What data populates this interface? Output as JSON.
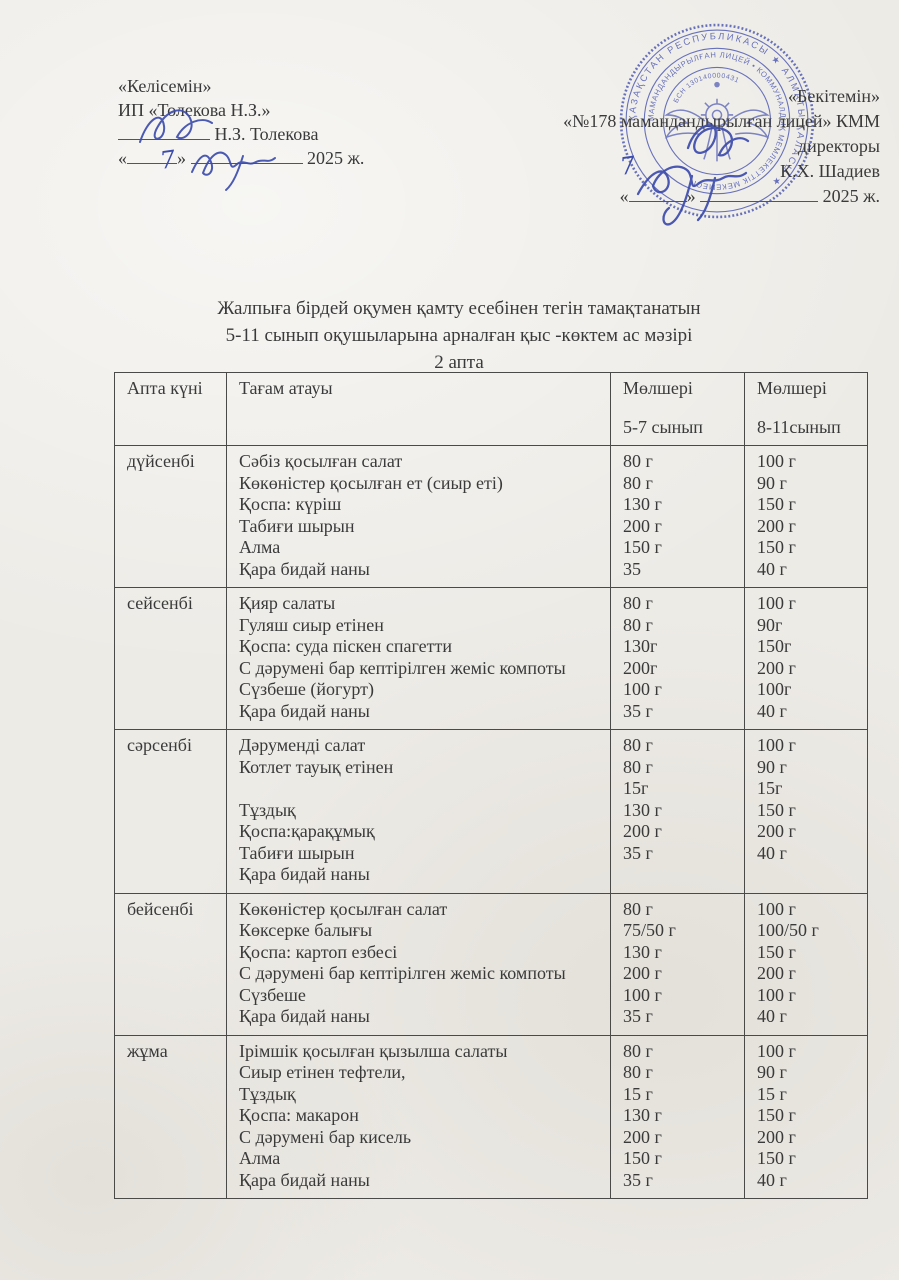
{
  "agree_block": {
    "title": "«Келісемін»",
    "org": "ИП «Толекова Н.З.»",
    "signer": "Н.З. Толекова",
    "quote_open": "«",
    "quote_close": "»",
    "year": "2025 ж."
  },
  "approve_block": {
    "title": "«Бекітемін»",
    "org": "«№178 мамандандырылған лицей» КММ",
    "role": "директоры",
    "signer": "К.Х. Шадиев",
    "quote_open": "«",
    "quote_close": "»",
    "year": "2025 ж."
  },
  "handwriting": {
    "left_day": "7",
    "right_day": "7"
  },
  "stamp": {
    "color": "#5560b4",
    "outer_text": "ҚАЗАҚСТАН РЕСПУБЛИКАСЫ ★ АЛМАТЫ ҚАЛАСЫ ★",
    "inner_text": "МАМАНДАНДЫРЫЛҒАН ЛИЦЕЙ • КОММУНАЛДЫҚ МЕМЛЕКЕТТІК МЕКЕМЕСІ",
    "bsn_text": "БСН 130140000431"
  },
  "doc_title": {
    "line1": "Жалпыға бірдей оқумен қамту есебінен тегін тамақтанатын",
    "line2": "5-11 сынып оқушыларына арналған қыс -көктем  ас мәзірі",
    "line3": "2 апта"
  },
  "menu_table": {
    "headers": {
      "day": "Апта күні",
      "dish": "Тағам атауы",
      "size1_line1": "Мөлшері",
      "size1_line2": "5-7 сынып",
      "size2_line1": "Мөлшері",
      "size2_line2": "8-11сынып"
    },
    "rows": [
      {
        "day": "дүйсенбі",
        "dishes": [
          "Сәбіз қосылған салат",
          "Көкөністер қосылған ет (сиыр еті)",
          "Қоспа: күріш",
          "Табиғи шырын",
          "Алма",
          "Қара бидай наны"
        ],
        "portions_5_7": [
          "80 г",
          "80 г",
          "130 г",
          "200 г",
          "150 г",
          "35"
        ],
        "portions_8_11": [
          "100 г",
          "90 г",
          "150 г",
          "200 г",
          "150 г",
          "40 г"
        ]
      },
      {
        "day": "сейсенбі",
        "dishes": [
          "Қияр салаты",
          "Гуляш сиыр етінен",
          "Қоспа: суда піскен  спагетти",
          "С дәрумені бар кептірілген жеміс компоты",
          "Сүзбеше (йогурт)",
          "Қара бидай наны"
        ],
        "portions_5_7": [
          "80 г",
          "80 г",
          "130г",
          "200г",
          "100 г",
          "35 г"
        ],
        "portions_8_11": [
          "100 г",
          "90г",
          "150г",
          "200 г",
          "100г",
          "40 г"
        ]
      },
      {
        "day": "сәрсенбі",
        "dishes": [
          "Дәруменді салат",
          "Котлет тауық етінен",
          "",
          "Тұздық",
          "Қоспа:қарақұмық",
          "Табиғи шырын",
          "Қара бидай наны"
        ],
        "portions_5_7": [
          "80 г",
          "80 г",
          "15г",
          "130 г",
          "200 г",
          "35 г"
        ],
        "portions_8_11": [
          "100 г",
          "90 г",
          "15г",
          "150 г",
          "200 г",
          "40 г"
        ]
      },
      {
        "day": "бейсенбі",
        "dishes": [
          "Көкөністер қосылған салат",
          "Көксерке балығы",
          "Қоспа: картоп езбесі",
          "С дәрумені бар кептірілген жеміс компоты",
          "Сүзбеше",
          "Қара бидай наны"
        ],
        "portions_5_7": [
          "80 г",
          "75/50 г",
          "130 г",
          "200 г",
          "100 г",
          "35 г"
        ],
        "portions_8_11": [
          "100 г",
          "100/50 г",
          "150 г",
          "200 г",
          "100 г",
          "40 г"
        ]
      },
      {
        "day": "жұма",
        "dishes": [
          "Ірімшік қосылған қызылша салаты",
          "Сиыр етінен тефтели,",
          "Тұздық",
          "Қоспа: макарон",
          "С дәрумені бар кисель",
          "Алма",
          "Қара бидай наны"
        ],
        "portions_5_7": [
          "80 г",
          "80 г",
          "15 г",
          "130 г",
          "200 г",
          "150 г",
          "35 г"
        ],
        "portions_8_11": [
          "100 г",
          "90 г",
          "15 г",
          "150 г",
          "200 г",
          "150 г",
          "40 г"
        ]
      }
    ]
  }
}
